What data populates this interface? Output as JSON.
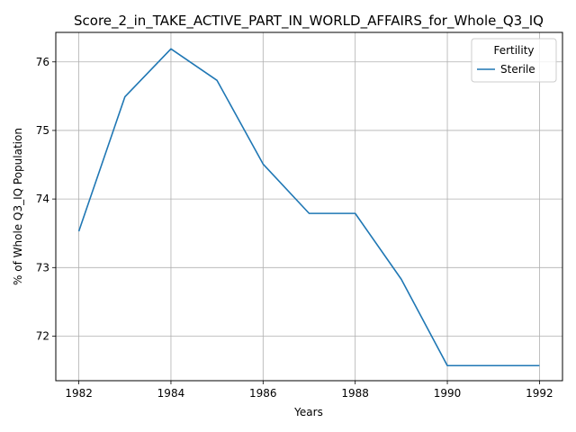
{
  "chart_data": {
    "type": "line",
    "title": "Score_2_in_TAKE_ACTIVE_PART_IN_WORLD_AFFAIRS_for_Whole_Q3_IQ",
    "xlabel": "Years",
    "ylabel": "% of Whole Q3_IQ Population",
    "xlim": [
      1981.5,
      1992.5
    ],
    "ylim": [
      71.35,
      76.43
    ],
    "xticks": [
      1982,
      1984,
      1986,
      1988,
      1990,
      1992
    ],
    "yticks": [
      72,
      73,
      74,
      75,
      76
    ],
    "grid": true,
    "legend": {
      "title": "Fertility",
      "position": "top-right"
    },
    "series": [
      {
        "name": "Sterile",
        "color": "#1f77b4",
        "x": [
          1982,
          1983,
          1984,
          1985,
          1986,
          1987,
          1988,
          1989,
          1990,
          1991,
          1992
        ],
        "y": [
          73.53,
          75.49,
          76.19,
          75.73,
          74.51,
          73.79,
          73.79,
          72.83,
          71.57,
          71.57,
          71.57
        ]
      }
    ]
  }
}
